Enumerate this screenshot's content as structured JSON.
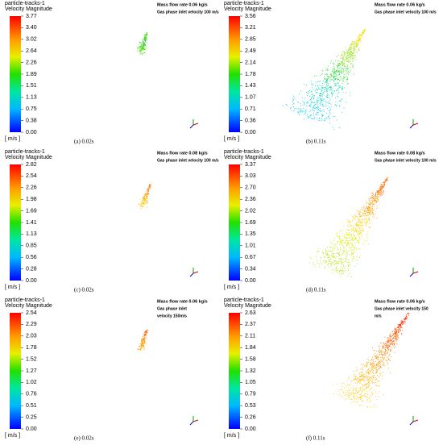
{
  "panels": [
    {
      "legend_title": [
        "particle-tracks-1",
        "Velocity Magnitude"
      ],
      "ticks": [
        "3.77",
        "3.40",
        "3.02",
        "2.64",
        "2.26",
        "1.89",
        "1.51",
        "1.13",
        "0.75",
        "0.38",
        "0.00"
      ],
      "unit": "[ m/s ]",
      "annotation": [
        "Mass flow rate 0.06 kg/s",
        "Gas phase inlet velocity 100 m/s"
      ],
      "caption": "(a)  0.02s"
    },
    {
      "legend_title": [
        "particle-tracks-1",
        "Velocity Magnitude"
      ],
      "ticks": [
        "3.56",
        "3.21",
        "2.85",
        "2.49",
        "2.14",
        "1.78",
        "1.43",
        "1.07",
        "0.71",
        "0.36",
        "0.00"
      ],
      "unit": "[ m/s ]",
      "annotation": [
        "Mass flow rate 0.06 kg/s",
        "Gas phase inlet velocity 100 m/s"
      ],
      "caption": "(b) 0.11s"
    },
    {
      "legend_title": [
        "particle-tracks-1",
        "Velocity Magnitude"
      ],
      "ticks": [
        "2.82",
        "2.54",
        "2.26",
        "1.98",
        "1.69",
        "1.41",
        "1.13",
        "0.85",
        "0.56",
        "0.28",
        "0.00"
      ],
      "unit": "[ m/s ]",
      "annotation": [
        "Mass flow rate 0.08 kg/s",
        "Gas phase inlet velocity 100 m/s"
      ],
      "caption": "(c) 0.02s"
    },
    {
      "legend_title": [
        "particle-tracks-1",
        "Velocity Magnitude"
      ],
      "ticks": [
        "3.37",
        "3.03",
        "2.70",
        "2.36",
        "2.02",
        "1.69",
        "1.35",
        "1.01",
        "0.67",
        "0.34",
        "0.00"
      ],
      "unit": "[ m/s ]",
      "annotation": [
        "Mass flow rate 0.08 kg/s",
        "Gas phase inlet velocity 100 m/s"
      ],
      "caption": "(d) 0.11s"
    },
    {
      "legend_title": [
        "particle-tracks-1",
        "Velocity Magnitude"
      ],
      "ticks": [
        "2.54",
        "2.29",
        "2.03",
        "1.78",
        "1.52",
        "1.27",
        "1.02",
        "0.76",
        "0.51",
        "0.25",
        "0.00"
      ],
      "unit": "[ m/s ]",
      "annotation": [
        "Mass flow rate 0.06 kg/s",
        "Gas phase inlet",
        "velocity 150m/s"
      ],
      "caption": "(e) 0.02s"
    },
    {
      "legend_title": [
        "particle-tracks-1",
        "Velocity Magnitude"
      ],
      "ticks": [
        "2.63",
        "2.37",
        "2.11",
        "1.84",
        "1.58",
        "1.32",
        "1.05",
        "0.79",
        "0.53",
        "0.26",
        "0.00"
      ],
      "unit": "[ m/s ]",
      "annotation": [
        "Mass flow rate 0.06 kg/s",
        "Gas phase inlet velocity 150",
        "m/s"
      ],
      "caption": "(f) 0.11s"
    }
  ]
}
